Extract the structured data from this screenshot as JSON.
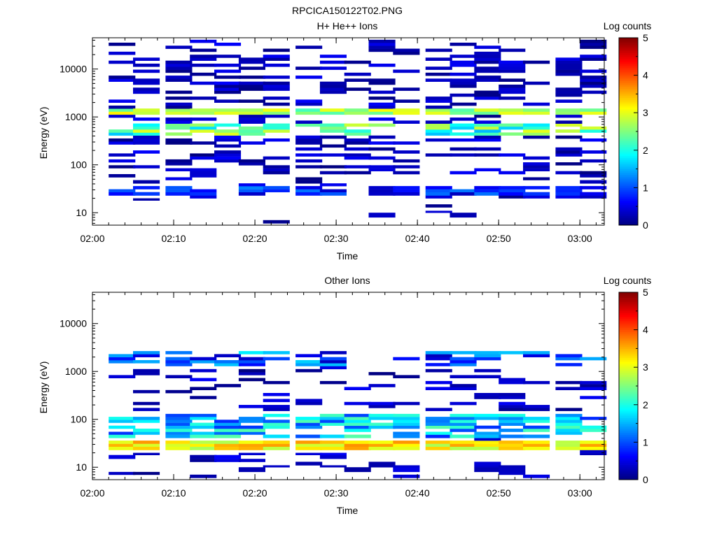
{
  "figure": {
    "title": "RPCICA150122T02.PNG"
  },
  "chart_data": [
    {
      "type": "heatmap",
      "title": "H+ He++ Ions",
      "xlabel": "Time",
      "ylabel": "Energy (eV)",
      "x_range": [
        "02:00",
        "03:03"
      ],
      "y_range_ev": [
        5.5,
        45000
      ],
      "y_scale": "log",
      "x_ticks": [
        "02:00",
        "02:10",
        "02:20",
        "02:30",
        "02:40",
        "02:50",
        "03:00"
      ],
      "y_ticks": [
        "10",
        "100",
        "1000",
        "10000"
      ],
      "colorbar": {
        "label": "Log counts",
        "range": [
          0,
          5
        ],
        "ticks": [
          "0",
          "1",
          "2",
          "3",
          "4",
          "5"
        ],
        "colormap": "jet"
      },
      "time_bins_start": [
        "02:02",
        "02:05",
        "02:09",
        "02:12",
        "02:15",
        "02:18",
        "02:21",
        "02:25",
        "02:28",
        "02:31",
        "02:34",
        "02:37",
        "02:41",
        "02:44",
        "02:47",
        "02:50",
        "02:53",
        "02:57",
        "03:00"
      ],
      "bin_minutes": 3.25,
      "energy_bins_ev": [
        6,
        7,
        8,
        10,
        11,
        13,
        15,
        18,
        20,
        23,
        27,
        31,
        36,
        41,
        48,
        55,
        64,
        74,
        85,
        98,
        113,
        130,
        150,
        173,
        200,
        231,
        267,
        308,
        355,
        410,
        474,
        547,
        631,
        729,
        841,
        972,
        1122,
        1296,
        1497,
        1728,
        1996,
        2304,
        2661,
        3073,
        3549,
        4099,
        4733,
        5466,
        6312,
        7290,
        8419,
        9722,
        11228,
        12966,
        14974,
        17293,
        19971,
        23063,
        26635,
        30759,
        35521,
        41022
      ],
      "dominant_band": {
        "energy_ev": [
          1150,
          1600
        ],
        "log_counts": [
          2.2,
          3.2
        ]
      },
      "secondary_band": {
        "energy_ev": [
          420,
          720
        ],
        "log_counts": [
          1.5,
          3.0
        ]
      },
      "low_energy_band": {
        "energy_ev": [
          22,
          38
        ],
        "log_counts": [
          0.3,
          1.3
        ]
      }
    },
    {
      "type": "heatmap",
      "title": "Other Ions",
      "xlabel": "Time",
      "ylabel": "Energy (eV)",
      "x_range": [
        "02:00",
        "03:03"
      ],
      "y_range_ev": [
        5.5,
        45000
      ],
      "y_scale": "log",
      "x_ticks": [
        "02:00",
        "02:10",
        "02:20",
        "02:30",
        "02:40",
        "02:50",
        "03:00"
      ],
      "y_ticks": [
        "10",
        "100",
        "1000",
        "10000"
      ],
      "colorbar": {
        "label": "Log counts",
        "range": [
          0,
          5
        ],
        "ticks": [
          "0",
          "1",
          "2",
          "3",
          "4",
          "5"
        ],
        "colormap": "jet"
      },
      "time_bins_start": [
        "02:02",
        "02:05",
        "02:09",
        "02:12",
        "02:15",
        "02:18",
        "02:21",
        "02:25",
        "02:28",
        "02:31",
        "02:34",
        "02:37",
        "02:41",
        "02:44",
        "02:47",
        "02:50",
        "02:53",
        "02:57",
        "03:00"
      ],
      "bin_minutes": 3.25,
      "energy_bins_ev": [
        6,
        7,
        8,
        10,
        11,
        13,
        15,
        18,
        20,
        23,
        27,
        31,
        36,
        41,
        48,
        55,
        64,
        74,
        85,
        98,
        113,
        130,
        150,
        173,
        200,
        231,
        267,
        308,
        355,
        410,
        474,
        547,
        631,
        729,
        841,
        972,
        1122,
        1296,
        1497,
        1728,
        1996,
        2304,
        2661,
        3073,
        3549,
        4099,
        4733,
        5466,
        6312,
        7290,
        8419,
        9722,
        11228,
        12966,
        14974,
        17293,
        19971,
        23063,
        26635,
        30759,
        35521,
        41022
      ],
      "dominant_band": {
        "energy_ev": [
          22,
          38
        ],
        "log_counts": [
          2.7,
          3.7
        ]
      },
      "secondary_band": {
        "energy_ev": [
          40,
          130
        ],
        "log_counts": [
          0.8,
          2.3
        ]
      },
      "high_energy_band": {
        "energy_ev": [
          1250,
          2800
        ],
        "log_counts": [
          0.3,
          1.8
        ]
      }
    }
  ]
}
